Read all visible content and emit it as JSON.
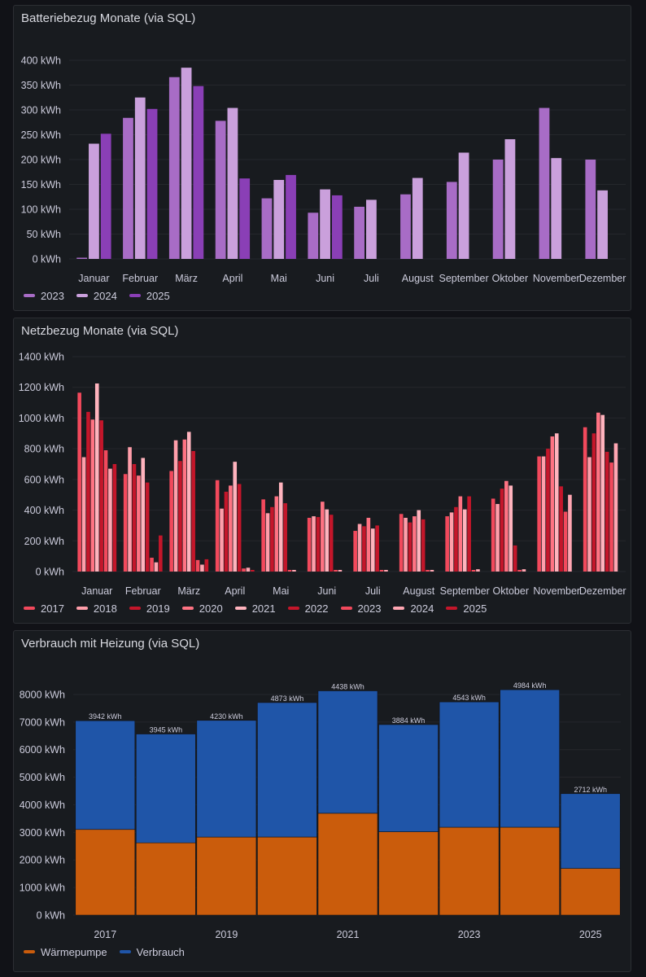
{
  "panels": [
    {
      "title": "Batteriebezug Monate (via SQL)"
    },
    {
      "title": "Netzbezug Monate (via SQL)"
    },
    {
      "title": "Verbrauch mit Heizung (via SQL)"
    }
  ],
  "chart_data": [
    {
      "type": "bar",
      "title": "Batteriebezug Monate (via SQL)",
      "xlabel": "",
      "ylabel": "",
      "unit": "kWh",
      "ylim": [
        0,
        400
      ],
      "yticks": [
        0,
        50,
        100,
        150,
        200,
        250,
        300,
        350,
        400
      ],
      "grid": true,
      "legend": "bottom-left",
      "categories": [
        "Januar",
        "Februar",
        "März",
        "April",
        "Mai",
        "Juni",
        "Juli",
        "August",
        "September",
        "Oktober",
        "November",
        "Dezember"
      ],
      "series": [
        {
          "name": "2023",
          "color": "#a86cc6",
          "values": [
            0,
            284,
            366,
            278,
            122,
            93,
            105,
            130,
            155,
            200,
            304,
            200
          ]
        },
        {
          "name": "2024",
          "color": "#caa0dc",
          "values": [
            232,
            325,
            385,
            304,
            159,
            140,
            119,
            163,
            214,
            241,
            203,
            138
          ]
        },
        {
          "name": "2025",
          "color": "#8a3fb6",
          "values": [
            252,
            302,
            348,
            162,
            169,
            128,
            null,
            null,
            null,
            null,
            null,
            null
          ]
        }
      ]
    },
    {
      "type": "bar",
      "title": "Netzbezug Monate (via SQL)",
      "xlabel": "",
      "ylabel": "",
      "unit": "kWh",
      "ylim": [
        0,
        1400
      ],
      "yticks": [
        0,
        200,
        400,
        600,
        800,
        1000,
        1200,
        1400
      ],
      "grid": true,
      "legend": "bottom-left",
      "categories": [
        "Januar",
        "Februar",
        "März",
        "April",
        "Mai",
        "Juni",
        "Juli",
        "August",
        "September",
        "Oktober",
        "November",
        "Dezember"
      ],
      "series": [
        {
          "name": "2017",
          "color": "#f2495c",
          "values": [
            1165,
            635,
            655,
            595,
            470,
            350,
            265,
            375,
            360,
            475,
            750,
            940
          ]
        },
        {
          "name": "2018",
          "color": "#ff9eaa",
          "values": [
            745,
            810,
            855,
            410,
            380,
            360,
            310,
            350,
            385,
            440,
            750,
            745
          ]
        },
        {
          "name": "2019",
          "color": "#c4162a",
          "values": [
            1040,
            700,
            720,
            520,
            420,
            355,
            295,
            320,
            420,
            540,
            800,
            900
          ]
        },
        {
          "name": "2020",
          "color": "#ff7383",
          "values": [
            990,
            625,
            860,
            560,
            490,
            455,
            350,
            360,
            490,
            590,
            880,
            1035
          ]
        },
        {
          "name": "2021",
          "color": "#ffb3bd",
          "values": [
            1225,
            740,
            910,
            715,
            580,
            405,
            280,
            400,
            405,
            560,
            900,
            1020
          ]
        },
        {
          "name": "2022",
          "color": "#c4162a",
          "values": [
            985,
            580,
            785,
            570,
            445,
            370,
            300,
            340,
            490,
            170,
            555,
            780
          ]
        },
        {
          "name": "2023",
          "color": "#f2495c",
          "values": [
            790,
            90,
            75,
            20,
            8,
            8,
            6,
            6,
            10,
            10,
            390,
            710
          ]
        },
        {
          "name": "2024",
          "color": "#ffa6b2",
          "values": [
            670,
            60,
            45,
            25,
            6,
            6,
            6,
            6,
            15,
            15,
            500,
            835
          ]
        },
        {
          "name": "2025",
          "color": "#c4162a",
          "values": [
            700,
            235,
            80,
            10,
            null,
            null,
            null,
            null,
            null,
            null,
            null,
            null
          ]
        }
      ]
    },
    {
      "type": "bar",
      "stacked": true,
      "title": "Verbrauch mit Heizung (via SQL)",
      "xlabel": "",
      "ylabel": "",
      "unit": "kWh",
      "ylim": [
        0,
        8500
      ],
      "yticks": [
        0,
        1000,
        2000,
        3000,
        4000,
        5000,
        6000,
        7000,
        8000
      ],
      "grid": true,
      "legend": "bottom-left",
      "categories": [
        "2017",
        "2018",
        "2019",
        "2020",
        "2021",
        "2022",
        "2023",
        "2024",
        "2025"
      ],
      "xtick_labels": [
        "2017",
        "2019",
        "2021",
        "2023",
        "2025"
      ],
      "series": [
        {
          "name": "Wärmepumpe",
          "color": "#ca5c0c",
          "values": [
            3106,
            2621,
            2830,
            2832,
            3693,
            3023,
            3186,
            3187,
            1692
          ]
        },
        {
          "name": "Verbrauch",
          "color": "#1f55a8",
          "values": [
            3942,
            3945,
            4230,
            4873,
            4438,
            3884,
            4543,
            4984,
            2712
          ]
        }
      ]
    }
  ]
}
